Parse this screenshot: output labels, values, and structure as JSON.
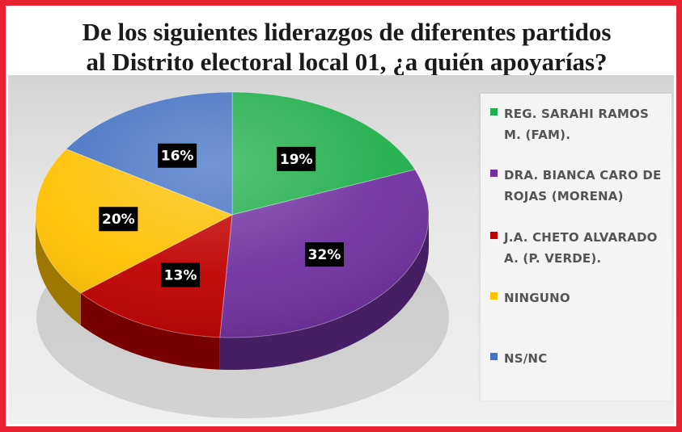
{
  "chart_data": {
    "type": "pie",
    "title": "De los siguientes liderazgos de diferentes partidos al Distrito electoral local 01, ¿a quién apoyarías?",
    "title_lines": [
      "De los siguientes liderazgos de diferentes partidos",
      "al Distrito electoral local 01, ¿a quién apoyarías?"
    ],
    "slices": [
      {
        "label": "REG. SARAHI RAMOS M. (FAM).",
        "legend_lines": [
          "REG. SARAHI RAMOS",
          "M. (FAM)."
        ],
        "value": 19,
        "display": "19%",
        "color": "#1fae4b"
      },
      {
        "label": "DRA. BIANCA CARO DE ROJAS (MORENA)",
        "legend_lines": [
          "DRA. BIANCA CARO DE",
          "ROJAS (MORENA)"
        ],
        "value": 32,
        "display": "32%",
        "color": "#7030a0"
      },
      {
        "label": "J.A. CHETO ALVARADO A. (P. VERDE).",
        "legend_lines": [
          "J.A. CHETO ALVARADO",
          "A. (P. VERDE)."
        ],
        "value": 13,
        "display": "13%",
        "color": "#c00000"
      },
      {
        "label": "NINGUNO",
        "legend_lines": [
          "NINGUNO"
        ],
        "value": 20,
        "display": "20%",
        "color": "#ffc000"
      },
      {
        "label": "NS/NC",
        "legend_lines": [
          "NS/NC"
        ],
        "value": 16,
        "display": "16%",
        "color": "#4472c4"
      }
    ],
    "legend_position": "right",
    "style": "3d-pie"
  }
}
